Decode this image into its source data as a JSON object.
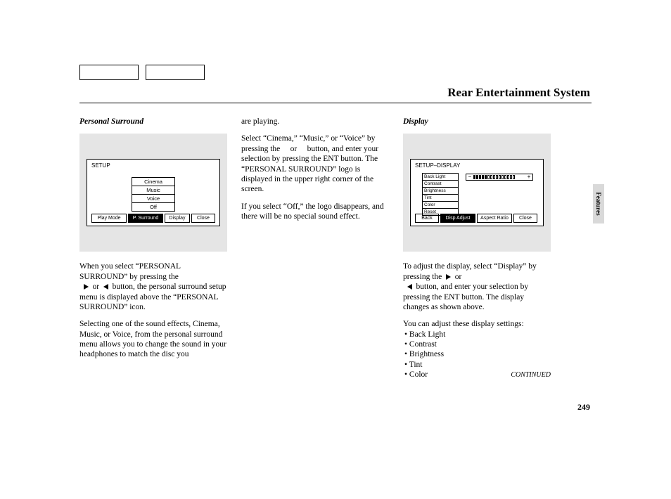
{
  "page": {
    "title": "Rear Entertainment System",
    "number": "249",
    "side_tab": "Features",
    "continued": "CONTINUED"
  },
  "col1": {
    "heading": "Personal Surround",
    "screen": {
      "label": "SETUP",
      "menu": [
        "Cinema",
        "Music",
        "Voice",
        "Off"
      ],
      "tabs": [
        "Play Mode",
        "P. Surround",
        "Display",
        "Close"
      ],
      "selected_tab_index": 1
    },
    "p1a": "When you select “PERSONAL SURROUND” by pressing the",
    "p1b": "button, the personal surround setup menu is displayed above the “PERSONAL SURROUND” icon.",
    "p2": "Selecting one of the sound effects, Cinema, Music, or Voice, from the personal surround menu allows you to change the sound in your headphones to match the disc you"
  },
  "col2": {
    "p1": "are playing.",
    "p2": "Select “Cinema,” “Music,” or “Voice” by pressing the     or     button, and enter your selection by pressing the ENT button. The “PERSONAL SURROUND” logo is displayed in the upper right corner of the screen.",
    "p3": "If you select “Off,” the logo disappears, and there will be no special sound effect."
  },
  "col3": {
    "heading": "Display",
    "screen": {
      "label": "SETUP–DISPLAY",
      "list": [
        "Back Light",
        "Contrast",
        "Brightness",
        "Tint",
        "Color",
        "Reset"
      ],
      "tabs": [
        "Back",
        "Disp Adjust",
        "Aspect Ratio",
        "Close"
      ],
      "selected_tab_index": 1,
      "slider_filled": 5,
      "slider_total": 15
    },
    "p1a": "To adjust the display, select “Display” by pressing the",
    "p1b": "button, and enter your selection by pressing the ENT button. The display changes as shown above.",
    "p2": "You can adjust these display settings:",
    "settings": [
      "Back Light",
      "Contrast",
      "Brightness",
      "Tint",
      "Color"
    ]
  },
  "or": "or"
}
